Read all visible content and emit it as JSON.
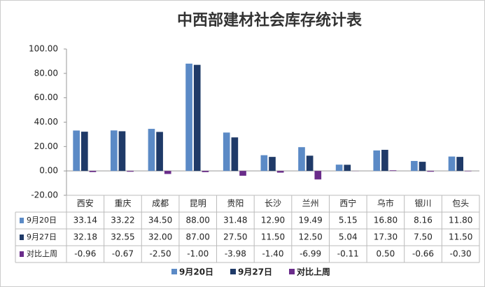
{
  "chart_data": {
    "type": "bar",
    "title": "中西部建材社会库存统计表",
    "categories": [
      "西安",
      "重庆",
      "成都",
      "昆明",
      "贵阳",
      "长沙",
      "兰州",
      "西宁",
      "乌市",
      "银川",
      "包头"
    ],
    "series": [
      {
        "name": "9月20日",
        "color": "#5b8ac6",
        "values": [
          33.14,
          33.22,
          34.5,
          88,
          31.48,
          12.9,
          19.49,
          5.15,
          16.8,
          8.16,
          11.8
        ],
        "value_labels": [
          "33.14",
          "33.22",
          "34.50",
          "88.00",
          "31.48",
          "12.90",
          "19.49",
          "5.15",
          "16.80",
          "8.16",
          "11.80"
        ]
      },
      {
        "name": "9月27日",
        "color": "#1f3a68",
        "values": [
          32.18,
          32.55,
          32,
          87,
          27.5,
          11.5,
          12.5,
          5.04,
          17.3,
          7.5,
          11.5
        ],
        "value_labels": [
          "32.18",
          "32.55",
          "32.00",
          "87.00",
          "27.50",
          "11.50",
          "12.50",
          "5.04",
          "17.30",
          "7.50",
          "11.50"
        ]
      },
      {
        "name": "对比上周",
        "color": "#6a2c8a",
        "values": [
          -0.96,
          -0.67,
          -2.5,
          -1,
          -3.98,
          -1.4,
          -6.99,
          -0.11,
          0.5,
          -0.66,
          -0.3
        ],
        "value_labels": [
          "-0.96",
          "-0.67",
          "-2.50",
          "-1.00",
          "-3.98",
          "-1.40",
          "-6.99",
          "-0.11",
          "0.50",
          "-0.66",
          "-0.30"
        ]
      }
    ],
    "ylim": [
      -20,
      100
    ],
    "yticks": [
      {
        "value": -20,
        "label": "-20.00"
      },
      {
        "value": 0,
        "label": "0.00"
      },
      {
        "value": 20,
        "label": "20.00"
      },
      {
        "value": 40,
        "label": "40.00"
      },
      {
        "value": 60,
        "label": "60.00"
      },
      {
        "value": 80,
        "label": "80.00"
      },
      {
        "value": 100,
        "label": "100.00"
      }
    ]
  }
}
